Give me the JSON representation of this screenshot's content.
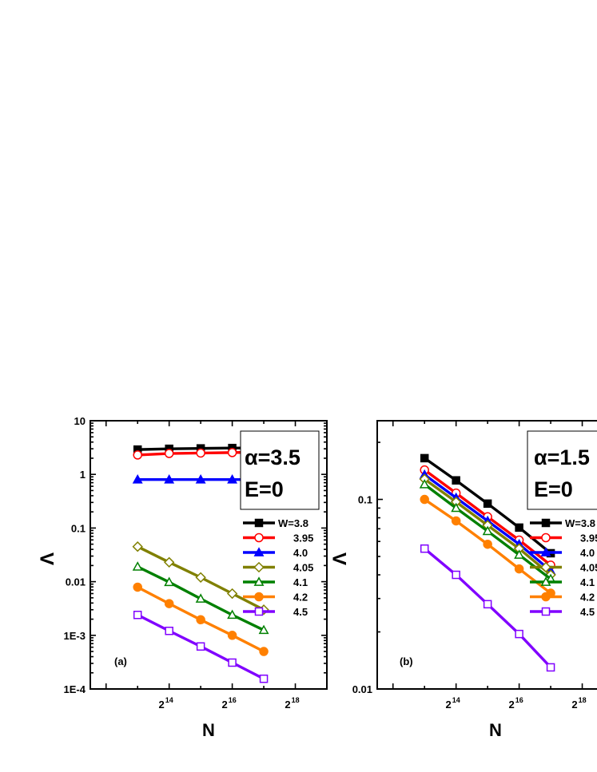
{
  "chart_data": [
    {
      "type": "line",
      "panel_label": "(a)",
      "xlabel": "N",
      "ylabel": "Λ",
      "xscale": "log2",
      "yscale": "log10",
      "x_tick_labels": [
        {
          "base": "2",
          "exp": "14"
        },
        {
          "base": "2",
          "exp": "16"
        },
        {
          "base": "2",
          "exp": "18"
        }
      ],
      "y_tick_labels": [
        "10",
        "1",
        "0.1",
        "0.01",
        "1E-3",
        "1E-4"
      ],
      "annotation": {
        "line1": "α=3.5",
        "line2": "E=0"
      },
      "x": [
        13,
        14,
        15,
        16,
        17
      ],
      "series": [
        {
          "name": "W=3.8",
          "color": "#000000",
          "marker": "filled-square",
          "values": [
            2.9,
            3.0,
            3.05,
            3.1,
            3.1
          ]
        },
        {
          "name": "3.95",
          "color": "#ff0000",
          "marker": "open-circle",
          "values": [
            2.3,
            2.45,
            2.5,
            2.55,
            2.6
          ]
        },
        {
          "name": "4.0",
          "color": "#0000ff",
          "marker": "filled-triangle",
          "values": [
            0.8,
            0.8,
            0.8,
            0.8,
            0.8
          ]
        },
        {
          "name": "4.05",
          "color": "#808000",
          "marker": "open-diamond",
          "values": [
            0.045,
            0.023,
            0.012,
            0.006,
            0.003
          ]
        },
        {
          "name": "4.1",
          "color": "#008000",
          "marker": "open-triangle",
          "values": [
            0.019,
            0.0098,
            0.0048,
            0.0024,
            0.00125
          ]
        },
        {
          "name": "4.2",
          "color": "#ff8000",
          "marker": "filled-circle",
          "values": [
            0.0079,
            0.0039,
            0.00195,
            0.001,
            0.0005
          ]
        },
        {
          "name": "4.5",
          "color": "#8000ff",
          "marker": "open-square",
          "values": [
            0.0024,
            0.00121,
            0.00062,
            0.00031,
            0.000155
          ]
        }
      ]
    },
    {
      "type": "line",
      "panel_label": "(b)",
      "xlabel": "N",
      "ylabel": "Λ",
      "xscale": "log2",
      "yscale": "log10",
      "x_tick_labels": [
        {
          "base": "2",
          "exp": "14"
        },
        {
          "base": "2",
          "exp": "16"
        },
        {
          "base": "2",
          "exp": "18"
        }
      ],
      "y_tick_labels": [
        "0.1",
        "0.01"
      ],
      "annotation": {
        "line1": "α=1.5",
        "line2": "E=0"
      },
      "x": [
        13,
        14,
        15,
        16,
        17
      ],
      "series": [
        {
          "name": "W=3.8",
          "color": "#000000",
          "marker": "filled-square",
          "values": [
            0.165,
            0.126,
            0.095,
            0.071,
            0.052
          ]
        },
        {
          "name": "3.95",
          "color": "#ff0000",
          "marker": "open-circle",
          "values": [
            0.143,
            0.108,
            0.081,
            0.061,
            0.045
          ]
        },
        {
          "name": "4.0",
          "color": "#0000ff",
          "marker": "filled-triangle",
          "values": [
            0.135,
            0.102,
            0.077,
            0.058,
            0.042
          ]
        },
        {
          "name": "4.05",
          "color": "#808000",
          "marker": "open-diamond",
          "values": [
            0.128,
            0.097,
            0.073,
            0.055,
            0.04
          ]
        },
        {
          "name": "4.1",
          "color": "#008000",
          "marker": "open-triangle",
          "values": [
            0.12,
            0.09,
            0.068,
            0.051,
            0.038
          ]
        },
        {
          "name": "4.2",
          "color": "#ff8000",
          "marker": "filled-circle",
          "values": [
            0.1,
            0.077,
            0.058,
            0.043,
            0.032
          ]
        },
        {
          "name": "4.5",
          "color": "#8000ff",
          "marker": "open-square",
          "values": [
            0.055,
            0.04,
            0.028,
            0.0195,
            0.013
          ]
        }
      ]
    }
  ]
}
